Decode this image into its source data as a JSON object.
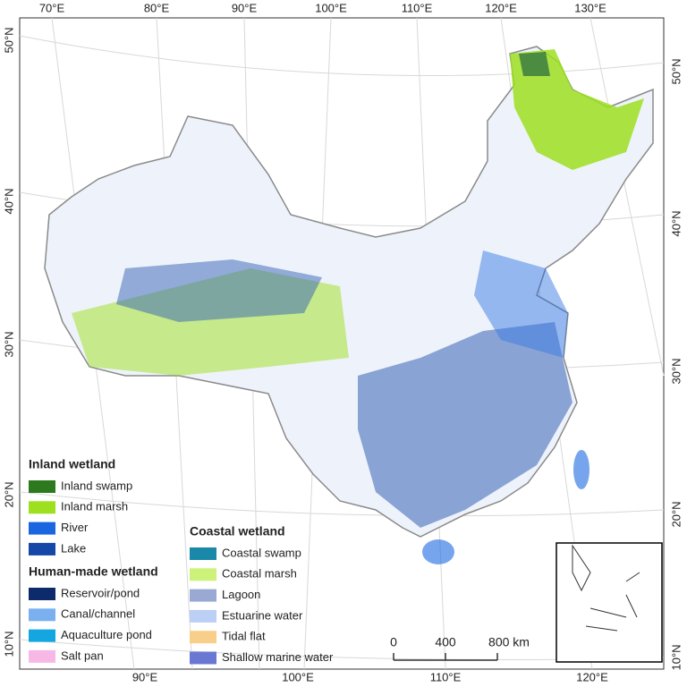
{
  "map": {
    "top_labels": [
      "70°E",
      "80°E",
      "90°E",
      "100°E",
      "110°E",
      "120°E",
      "130°E"
    ],
    "bottom_labels": [
      "90°E",
      "100°E",
      "110°E",
      "120°E"
    ],
    "left_labels": [
      "50°N",
      "40°N",
      "30°N",
      "20°N",
      "10°N"
    ],
    "right_labels": [
      "50°N",
      "40°N",
      "30°N",
      "20°N",
      "10°N"
    ],
    "legend": [
      {
        "title": "Inland wetland",
        "items": [
          {
            "label": "Inland swamp",
            "color": "#2d7a1e"
          },
          {
            "label": "Inland marsh",
            "color": "#9ee01f"
          },
          {
            "label": "River",
            "color": "#1a66e0"
          },
          {
            "label": "Lake",
            "color": "#1447a8"
          }
        ]
      },
      {
        "title": "Human-made wetland",
        "items": [
          {
            "label": "Reservoir/pond",
            "color": "#0d2a6b"
          },
          {
            "label": "Canal/channel",
            "color": "#7ab0f0"
          },
          {
            "label": "Aquaculture pond",
            "color": "#13a6e0"
          },
          {
            "label": "Salt pan",
            "color": "#f7b8e6"
          }
        ]
      },
      {
        "title": "Coastal wetland",
        "items": [
          {
            "label": "Coastal swamp",
            "color": "#1a88a8"
          },
          {
            "label": "Coastal marsh",
            "color": "#ccf27a"
          },
          {
            "label": "Lagoon",
            "color": "#9aa8d4"
          },
          {
            "label": "Estuarine water",
            "color": "#bcd0f5"
          },
          {
            "label": "Tidal flat",
            "color": "#f7cf8a"
          },
          {
            "label": "Shallow marine water",
            "color": "#6a78d4"
          }
        ]
      }
    ],
    "scale_bar": {
      "labels": [
        "0",
        "400",
        "800 km"
      ]
    }
  }
}
